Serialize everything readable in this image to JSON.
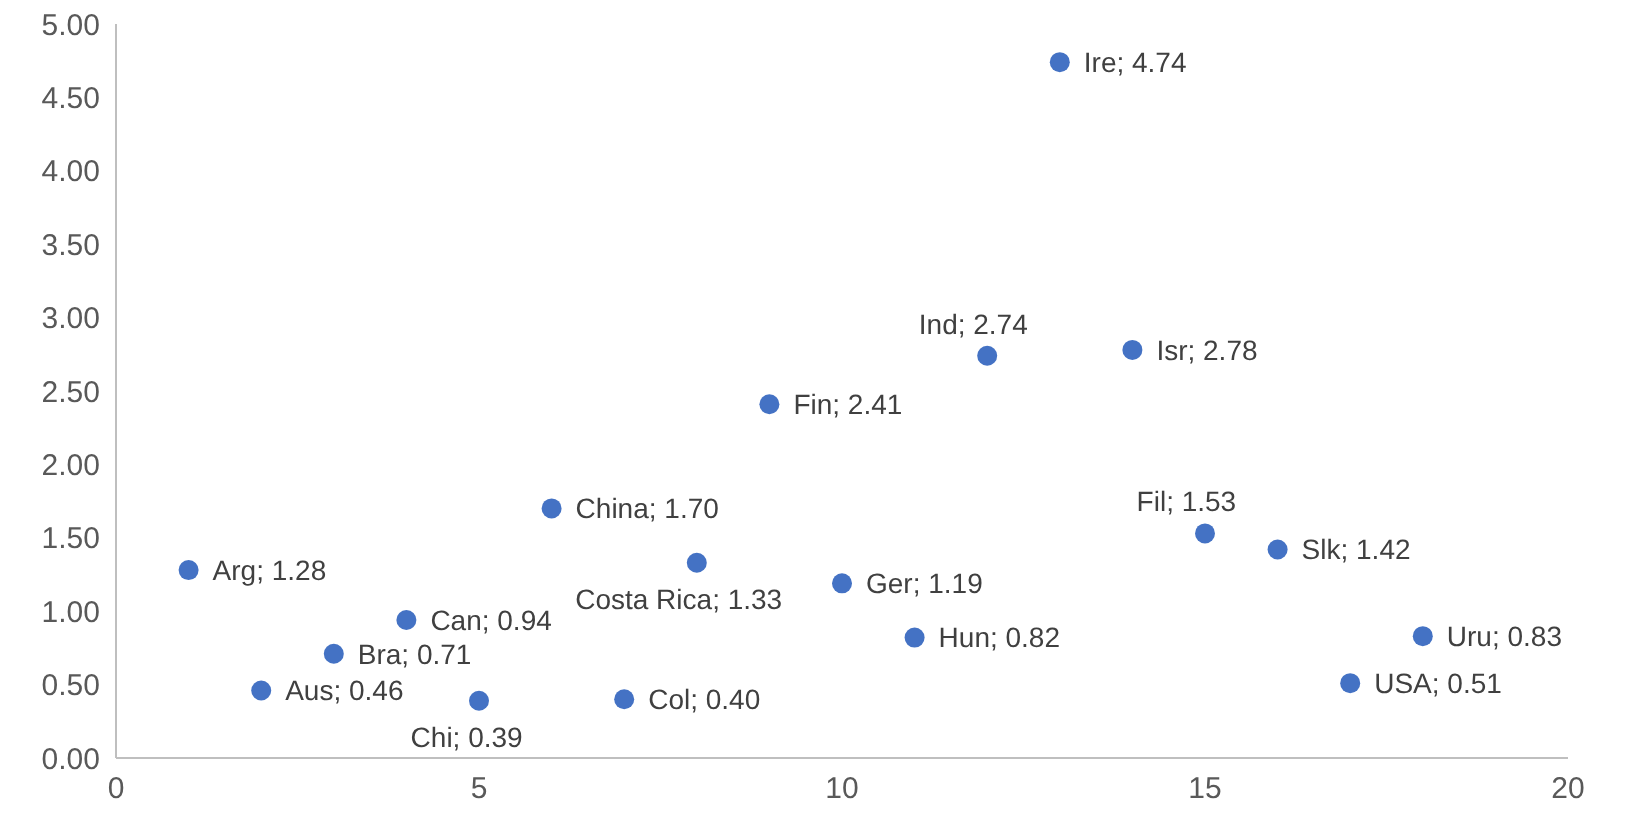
{
  "chart_data": {
    "type": "scatter",
    "xlim": [
      0,
      20
    ],
    "xticks": [
      0,
      5,
      10,
      15,
      20
    ],
    "ylim": [
      0,
      5
    ],
    "yticks": [
      {
        "value": 0,
        "label": "0.00"
      },
      {
        "value": 0.5,
        "label": "0.50"
      },
      {
        "value": 1,
        "label": "1.00"
      },
      {
        "value": 1.5,
        "label": "1.50"
      },
      {
        "value": 2,
        "label": "2.00"
      },
      {
        "value": 2.5,
        "label": "2.50"
      },
      {
        "value": 3,
        "label": "3.00"
      },
      {
        "value": 3.5,
        "label": "3.50"
      },
      {
        "value": 4,
        "label": "4.00"
      },
      {
        "value": 4.5,
        "label": "4.50"
      },
      {
        "value": 5,
        "label": "5.00"
      }
    ],
    "marker": "circle",
    "series": [
      {
        "color": "#4472c4",
        "x": [
          1,
          2,
          3,
          4,
          5,
          6,
          7,
          8,
          9,
          10,
          11,
          12,
          13,
          14,
          15,
          16,
          17,
          18
        ],
        "values": [
          1.28,
          0.46,
          0.71,
          0.94,
          0.39,
          1.7,
          0.4,
          1.33,
          2.41,
          1.19,
          0.82,
          2.74,
          4.74,
          2.78,
          1.53,
          1.42,
          0.51,
          0.83
        ],
        "value_labels": [
          "Arg; 1.28",
          "Aus; 0.46",
          "Bra; 0.71",
          "Can; 0.94",
          "Chi; 0.39",
          "China; 1.70",
          "Col; 0.40",
          "Costa Rica; 1.33",
          "Fin; 2.41",
          "Ger; 1.19",
          "Hun; 0.82",
          "Ind; 2.74",
          "Ire; 4.74",
          "Isr; 2.78",
          "Fil; 1.53",
          "Slk; 1.42",
          "USA; 0.51",
          "Uru; 0.83"
        ]
      }
    ]
  }
}
